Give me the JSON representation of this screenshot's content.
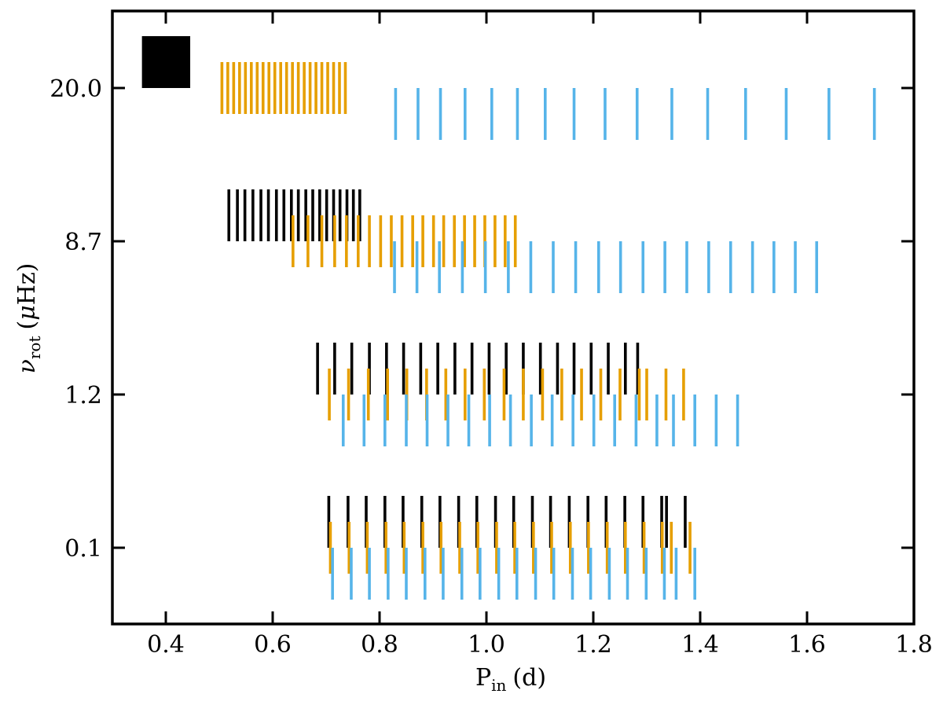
{
  "chart_data": {
    "type": "scatter",
    "marker": "vertical-line",
    "xlabel": {
      "main": "P",
      "sub": "in",
      "unit": "(d)"
    },
    "ylabel": {
      "main": "ν",
      "sub": "rot",
      "unit_open": "(",
      "unit_mu": "μ",
      "unit_rest": "Hz)"
    },
    "xlim": [
      0.3,
      1.8
    ],
    "xticks": [
      0.4,
      0.6,
      0.8,
      1.0,
      1.2,
      1.4,
      1.6,
      1.8
    ],
    "xtick_labels": [
      "0.4",
      "0.6",
      "0.8",
      "1.0",
      "1.2",
      "1.4",
      "1.6",
      "1.8"
    ],
    "yticks": [
      0.1,
      1.2,
      8.7,
      20.0
    ],
    "ytick_labels": [
      "0.1",
      "1.2",
      "8.7",
      "20.0"
    ],
    "grid": false,
    "colors": {
      "black": "#000000",
      "orange": "#e69f00",
      "blue": "#56b4e9"
    },
    "series": [
      {
        "color": "black",
        "rotation": "20.0",
        "offset": 1,
        "values": [
          0.358,
          0.361,
          0.363,
          0.365,
          0.367,
          0.37,
          0.373,
          0.376,
          0.379,
          0.383,
          0.387,
          0.391,
          0.395,
          0.399,
          0.403,
          0.407,
          0.411,
          0.415,
          0.419,
          0.423,
          0.427,
          0.431,
          0.435,
          0.439,
          0.443
        ]
      },
      {
        "color": "orange",
        "rotation": "20.0",
        "offset": 0,
        "values": [
          0.505,
          0.516,
          0.527,
          0.538,
          0.549,
          0.56,
          0.571,
          0.582,
          0.593,
          0.604,
          0.615,
          0.626,
          0.637,
          0.648,
          0.659,
          0.67,
          0.681,
          0.692,
          0.703,
          0.714,
          0.725,
          0.736
        ]
      },
      {
        "color": "blue",
        "rotation": "20.0",
        "offset": -1,
        "values": [
          0.83,
          0.872,
          0.914,
          0.96,
          1.01,
          1.058,
          1.11,
          1.164,
          1.222,
          1.282,
          1.347,
          1.414,
          1.485,
          1.561,
          1.641,
          1.726
        ]
      },
      {
        "color": "black",
        "rotation": "8.7",
        "offset": 1,
        "values": [
          0.518,
          0.534,
          0.548,
          0.563,
          0.578,
          0.592,
          0.607,
          0.621,
          0.635,
          0.648,
          0.662,
          0.675,
          0.688,
          0.701,
          0.714,
          0.726,
          0.739,
          0.751,
          0.763
        ]
      },
      {
        "color": "orange",
        "rotation": "8.7",
        "offset": 0,
        "values": [
          0.638,
          0.666,
          0.692,
          0.716,
          0.738,
          0.76,
          0.781,
          0.802,
          0.822,
          0.842,
          0.862,
          0.881,
          0.901,
          0.92,
          0.94,
          0.959,
          0.978,
          0.997,
          1.016,
          1.035,
          1.054
        ]
      },
      {
        "color": "blue",
        "rotation": "8.7",
        "offset": -1,
        "values": [
          0.828,
          0.87,
          0.912,
          0.955,
          0.998,
          1.041,
          1.083,
          1.125,
          1.167,
          1.21,
          1.251,
          1.293,
          1.334,
          1.375,
          1.416,
          1.457,
          1.498,
          1.538,
          1.578,
          1.618
        ]
      },
      {
        "color": "black",
        "rotation": "1.2",
        "offset": 1,
        "values": [
          0.684,
          0.716,
          0.748,
          0.781,
          0.813,
          0.845,
          0.877,
          0.909,
          0.941,
          0.973,
          1.005,
          1.037,
          1.069,
          1.101,
          1.133,
          1.164,
          1.196,
          1.228,
          1.26,
          1.283
        ]
      },
      {
        "color": "orange",
        "rotation": "1.2",
        "offset": 0,
        "values": [
          0.706,
          0.742,
          0.779,
          0.815,
          0.851,
          0.888,
          0.924,
          0.96,
          0.996,
          1.033,
          1.069,
          1.105,
          1.141,
          1.178,
          1.214,
          1.25,
          1.286,
          1.3,
          1.336,
          1.369
        ]
      },
      {
        "color": "blue",
        "rotation": "1.2",
        "offset": -1,
        "values": [
          0.732,
          0.771,
          0.81,
          0.85,
          0.889,
          0.928,
          0.967,
          1.006,
          1.045,
          1.084,
          1.123,
          1.162,
          1.201,
          1.24,
          1.28,
          1.319,
          1.35,
          1.39,
          1.43,
          1.47
        ]
      },
      {
        "color": "black",
        "rotation": "0.1",
        "offset": 1,
        "values": [
          0.705,
          0.741,
          0.775,
          0.81,
          0.844,
          0.879,
          0.913,
          0.948,
          0.982,
          1.017,
          1.051,
          1.086,
          1.12,
          1.155,
          1.19,
          1.224,
          1.259,
          1.293,
          1.328,
          1.337,
          1.372
        ]
      },
      {
        "color": "orange",
        "rotation": "0.1",
        "offset": 0,
        "values": [
          0.708,
          0.743,
          0.777,
          0.812,
          0.846,
          0.881,
          0.915,
          0.95,
          0.984,
          1.019,
          1.053,
          1.088,
          1.122,
          1.157,
          1.191,
          1.226,
          1.26,
          1.295,
          1.329,
          1.346,
          1.381
        ]
      },
      {
        "color": "blue",
        "rotation": "0.1",
        "offset": -1,
        "values": [
          0.712,
          0.747,
          0.781,
          0.816,
          0.85,
          0.885,
          0.919,
          0.954,
          0.988,
          1.023,
          1.057,
          1.092,
          1.126,
          1.161,
          1.195,
          1.23,
          1.264,
          1.299,
          1.333,
          1.355,
          1.39
        ]
      }
    ]
  }
}
